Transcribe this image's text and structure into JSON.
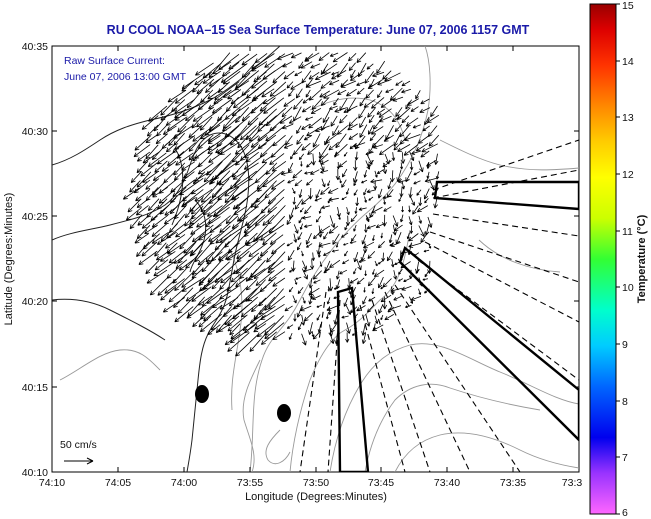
{
  "title": "RU COOL  NOAA–15  Sea Surface Temperature:  June 07, 2006 1157 GMT",
  "legend": {
    "line1": "Raw Surface Current:",
    "line2": "June 07, 2006 13:00 GMT"
  },
  "scale_label": "50 cm/s",
  "x_axis": {
    "label": "Longitude (Degrees:Minutes)",
    "ticks": [
      "74:10",
      "74:05",
      "74:00",
      "73:55",
      "73:50",
      "73:45",
      "73:40",
      "73:35",
      "73:3"
    ]
  },
  "y_axis": {
    "label": "Latitude (Degrees:Minutes)",
    "ticks": [
      "40:35",
      "40:30",
      "40:25",
      "40:20",
      "40:15",
      "40:10"
    ]
  },
  "colorbar": {
    "label": "Temperature (°C)",
    "ticks": [
      "15",
      "14",
      "13",
      "12",
      "11",
      "10",
      "9",
      "8",
      "7",
      "6"
    ],
    "range": [
      6,
      15
    ],
    "colors": [
      "#ff66ff",
      "#9933ff",
      "#0000ee",
      "#0066ff",
      "#00ccff",
      "#00ffcc",
      "#33ff33",
      "#ccff00",
      "#ffff00",
      "#ffcc00",
      "#ff8800",
      "#ff3300",
      "#dd0000",
      "#990000"
    ]
  },
  "colors": {
    "title": "#1a1aa8",
    "coast": "#222222",
    "bathymetry": "#999999",
    "vectors": "#000000"
  }
}
